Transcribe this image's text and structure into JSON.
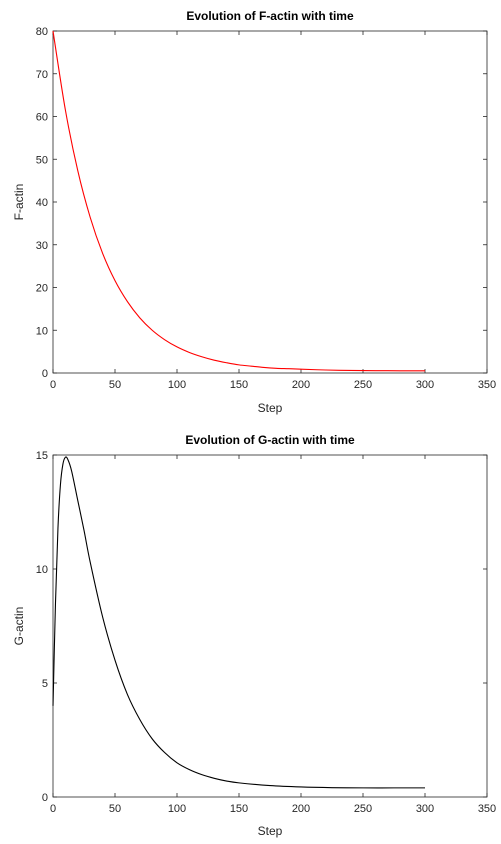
{
  "chart_data": [
    {
      "type": "line",
      "title": "Evolution of F-actin with time",
      "xlabel": "Step",
      "ylabel": "F-actin",
      "xlim": [
        0,
        350
      ],
      "ylim": [
        0,
        80
      ],
      "xticks": [
        0,
        50,
        100,
        150,
        200,
        250,
        300,
        350
      ],
      "yticks": [
        0,
        10,
        20,
        30,
        40,
        50,
        60,
        70,
        80
      ],
      "grid": false,
      "series": [
        {
          "color": "#ff0000",
          "x": [
            0,
            10,
            20,
            30,
            40,
            50,
            60,
            70,
            80,
            90,
            100,
            110,
            120,
            130,
            140,
            150,
            160,
            170,
            180,
            190,
            200,
            220,
            240,
            260,
            280,
            300
          ],
          "y": [
            80,
            61.5,
            47.3,
            36.4,
            28.0,
            21.6,
            16.7,
            12.9,
            10.0,
            7.8,
            6.1,
            4.8,
            3.8,
            3.0,
            2.4,
            1.9,
            1.6,
            1.3,
            1.1,
            1.0,
            0.9,
            0.7,
            0.6,
            0.55,
            0.52,
            0.5
          ]
        }
      ]
    },
    {
      "type": "line",
      "title": "Evolution of G-actin with time",
      "xlabel": "Step",
      "ylabel": "G-actin",
      "xlim": [
        0,
        350
      ],
      "ylim": [
        0,
        15
      ],
      "xticks": [
        0,
        50,
        100,
        150,
        200,
        250,
        300,
        350
      ],
      "yticks": [
        0,
        5,
        10,
        15
      ],
      "grid": false,
      "series": [
        {
          "color": "#000000",
          "x": [
            0,
            2,
            4,
            6,
            8,
            10,
            12,
            15,
            20,
            25,
            30,
            40,
            50,
            60,
            70,
            80,
            90,
            100,
            110,
            120,
            130,
            140,
            150,
            175,
            200,
            225,
            250,
            275,
            300
          ],
          "y": [
            4.0,
            8.5,
            11.8,
            13.7,
            14.6,
            14.9,
            14.8,
            14.3,
            13.0,
            11.7,
            10.3,
            7.9,
            6.0,
            4.5,
            3.4,
            2.55,
            1.95,
            1.5,
            1.2,
            0.98,
            0.82,
            0.7,
            0.62,
            0.5,
            0.44,
            0.41,
            0.4,
            0.4,
            0.4
          ]
        }
      ]
    }
  ]
}
